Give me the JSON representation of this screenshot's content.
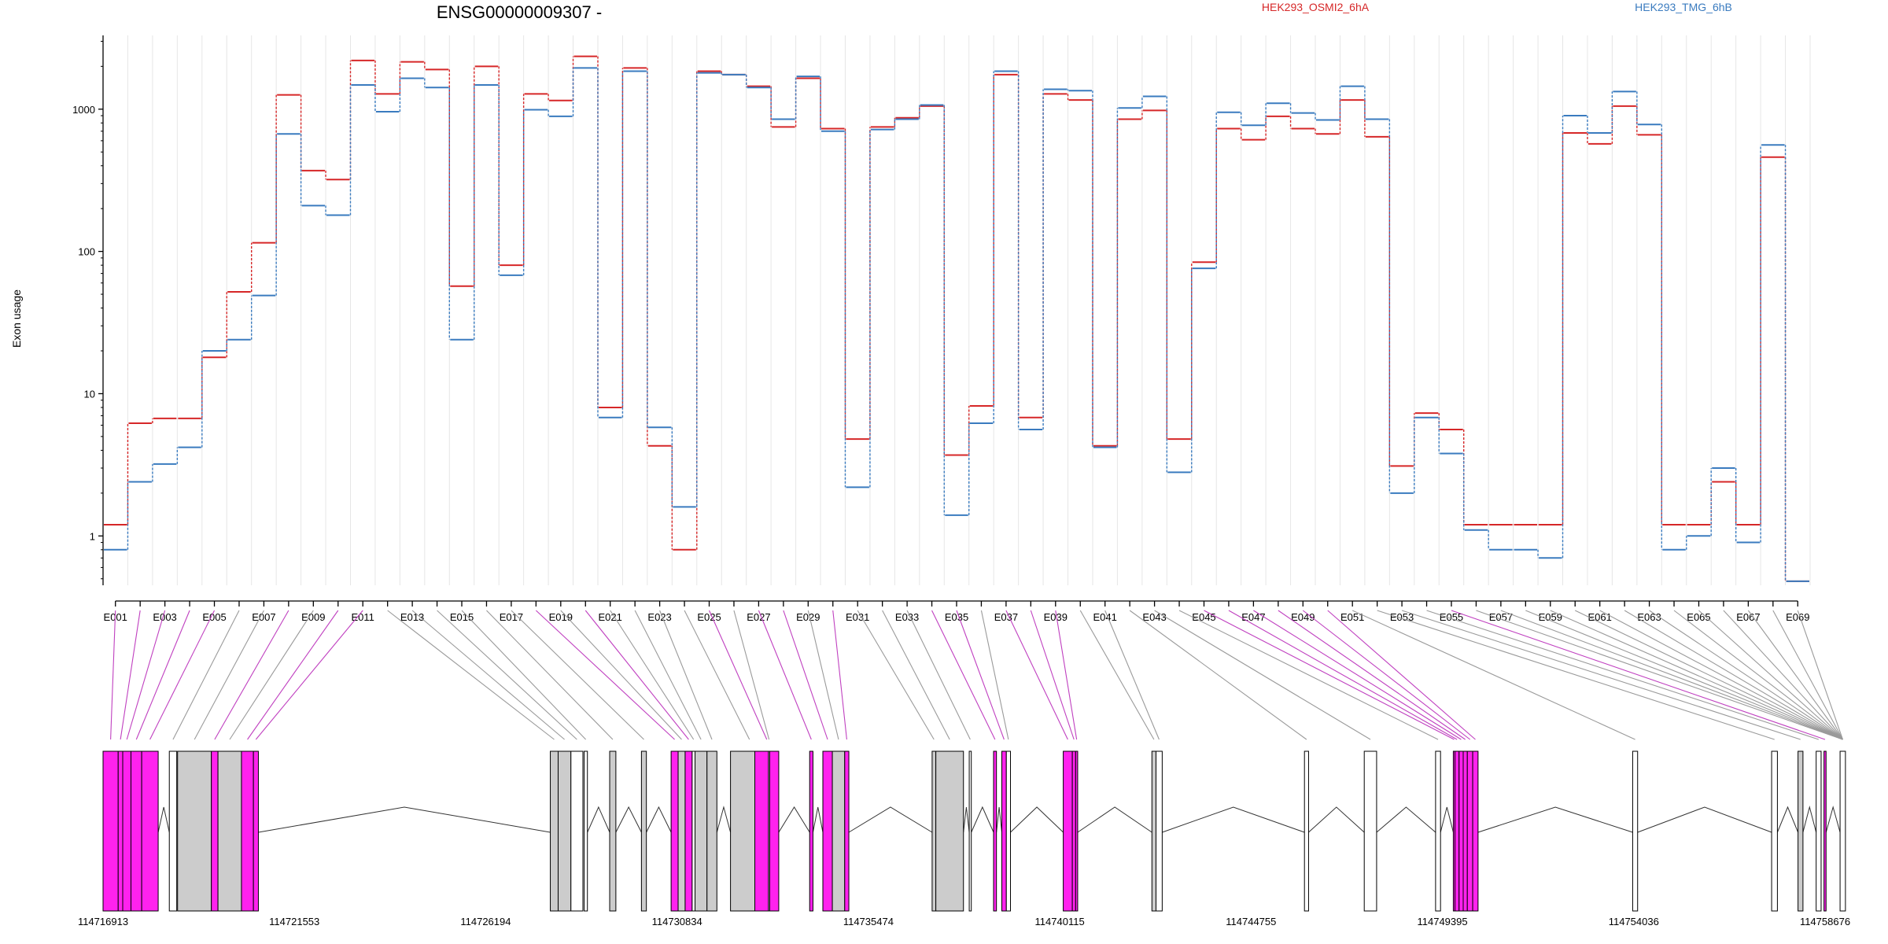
{
  "chart_data": {
    "type": "line",
    "title": "ENSG00000009307 -",
    "ylabel": "Exon usage",
    "yscale": "log",
    "ylim": [
      0.45,
      3300
    ],
    "ytick_labels": [
      "1",
      "10",
      "100",
      "1000"
    ],
    "grid": "vertical",
    "legend_placement": "top",
    "series": [
      {
        "name": "HEK293_OSMI2_6hA",
        "color": "#d62728",
        "values": [
          1.2,
          6.2,
          6.7,
          6.7,
          18,
          52,
          115,
          1260,
          370,
          320,
          2200,
          1280,
          2150,
          1900,
          57,
          2000,
          80,
          1280,
          1150,
          2350,
          8,
          1950,
          4.3,
          0.8,
          1850,
          1750,
          1450,
          750,
          1650,
          730,
          4.8,
          750,
          870,
          1050,
          3.7,
          8.2,
          1750,
          6.8,
          1280,
          1160,
          4.3,
          850,
          980,
          4.8,
          84,
          730,
          610,
          890,
          730,
          670,
          1160,
          640,
          3.1,
          7.3,
          5.6,
          1.2,
          1.2,
          1.2,
          1.2,
          680,
          570,
          1050,
          660,
          1.2,
          1.2,
          2.4,
          1.2,
          460,
          0.48
        ]
      },
      {
        "name": "HEK293_TMG_6hB",
        "color": "#3a7bbf",
        "values": [
          0.8,
          2.4,
          3.2,
          4.2,
          20,
          24,
          49,
          670,
          210,
          180,
          1480,
          960,
          1650,
          1420,
          24,
          1480,
          68,
          990,
          890,
          1950,
          6.8,
          1850,
          5.8,
          1.6,
          1800,
          1750,
          1420,
          850,
          1700,
          700,
          2.2,
          720,
          850,
          1070,
          1.4,
          6.2,
          1850,
          5.6,
          1380,
          1350,
          4.2,
          1020,
          1230,
          2.8,
          76,
          950,
          770,
          1100,
          940,
          840,
          1450,
          850,
          2.0,
          6.8,
          3.8,
          1.1,
          0.8,
          0.8,
          0.7,
          900,
          680,
          1330,
          780,
          0.8,
          1.0,
          3.0,
          0.9,
          560,
          0.48
        ]
      }
    ],
    "x": [
      "E001",
      "E002",
      "E003",
      "E004",
      "E005",
      "E006",
      "E007",
      "E008",
      "E009",
      "E010",
      "E011",
      "E012",
      "E013",
      "E014",
      "E015",
      "E016",
      "E017",
      "E018",
      "E019",
      "E020",
      "E021",
      "E022",
      "E023",
      "E024",
      "E025",
      "E026",
      "E027",
      "E028",
      "E029",
      "E030",
      "E031",
      "E032",
      "E033",
      "E034",
      "E035",
      "E036",
      "E037",
      "E038",
      "E039",
      "E040",
      "E041",
      "E042",
      "E043",
      "E044",
      "E045",
      "E046",
      "E047",
      "E048",
      "E049",
      "E050",
      "E051",
      "E052",
      "E053",
      "E054",
      "E055",
      "E056",
      "E057",
      "E058",
      "E059",
      "E060",
      "E061",
      "E062",
      "E063",
      "E064",
      "E065",
      "E066",
      "E067",
      "E068",
      "E069"
    ],
    "x_tick_labels": [
      "E001",
      "E003",
      "E005",
      "E007",
      "E009",
      "E011",
      "E013",
      "E015",
      "E017",
      "E019",
      "E021",
      "E023",
      "E025",
      "E027",
      "E029",
      "E031",
      "E033",
      "E035",
      "E037",
      "E039",
      "E041",
      "E043",
      "E045",
      "E047",
      "E049",
      "E051",
      "E053",
      "E055",
      "E057",
      "E059",
      "E061",
      "E063",
      "E065",
      "E067",
      "E069"
    ],
    "gene_model": {
      "genomic_range": [
        114716913,
        114758676
      ],
      "coordinate_labels": [
        "114716913",
        "114721553",
        "114726194",
        "114730834",
        "114735474",
        "114740115",
        "114744755",
        "114749395",
        "114754036",
        "114758676"
      ],
      "exon_starts": [
        114716913,
        114717280,
        114717390,
        114717590,
        114717850,
        114718520,
        114718720,
        114719540,
        114719700,
        114720270,
        114720560,
        114727760,
        114727950,
        114728260,
        114728580,
        114729200,
        114729970,
        114730690,
        114730860,
        114731030,
        114731200,
        114731270,
        114731560,
        114732130,
        114732720,
        114733050,
        114734050,
        114734370,
        114734600,
        114734900,
        114737020,
        114737110,
        114737920,
        114738510,
        114738710,
        114738820,
        114740200,
        114740420,
        114740500,
        114742350,
        114742450,
        114746050,
        114747500,
        114749230,
        114749660,
        114749700,
        114749800,
        114749900,
        114750000,
        114750130,
        114754010,
        114757380,
        114758020,
        114758460,
        114758650,
        114759040
      ],
      "exon_ends": [
        114717280,
        114717390,
        114717590,
        114717850,
        114718250,
        114718700,
        114719540,
        114719700,
        114720270,
        114720560,
        114720680,
        114727950,
        114728260,
        114728550,
        114728660,
        114729350,
        114730090,
        114730860,
        114731030,
        114731200,
        114731270,
        114731560,
        114731800,
        114733050,
        114733300,
        114733080,
        114734130,
        114734600,
        114734900,
        114735000,
        114737110,
        114737780,
        114737970,
        114738580,
        114738820,
        114738920,
        114740420,
        114740500,
        114740550,
        114742450,
        114742600,
        114746150,
        114747800,
        114749350,
        114749700,
        114749800,
        114749900,
        114750000,
        114750130,
        114750260,
        114754130,
        114757520,
        114758140,
        114758580,
        114758700,
        114759170
      ],
      "exon_colors": [
        "magenta",
        "magenta",
        "magenta",
        "magenta",
        "magenta",
        "white",
        "grey",
        "magenta",
        "grey",
        "magenta",
        "magenta",
        "grey",
        "grey",
        "white",
        "white",
        "grey",
        "grey",
        "magenta",
        "grey",
        "magenta",
        "white",
        "grey",
        "grey",
        "grey",
        "magenta",
        "grey",
        "magenta",
        "magenta",
        "grey",
        "magenta",
        "grey",
        "grey",
        "white",
        "magenta",
        "magenta",
        "white",
        "magenta",
        "magenta",
        "magenta",
        "grey",
        "white",
        "white",
        "white",
        "white",
        "magenta",
        "magenta",
        "magenta",
        "magenta",
        "magenta",
        "magenta",
        "white",
        "white",
        "grey",
        "white",
        "magenta",
        "white"
      ],
      "colors": {
        "highlight": "#ff22ee",
        "normal": "#cccccc",
        "empty": "#ffffff"
      }
    }
  }
}
